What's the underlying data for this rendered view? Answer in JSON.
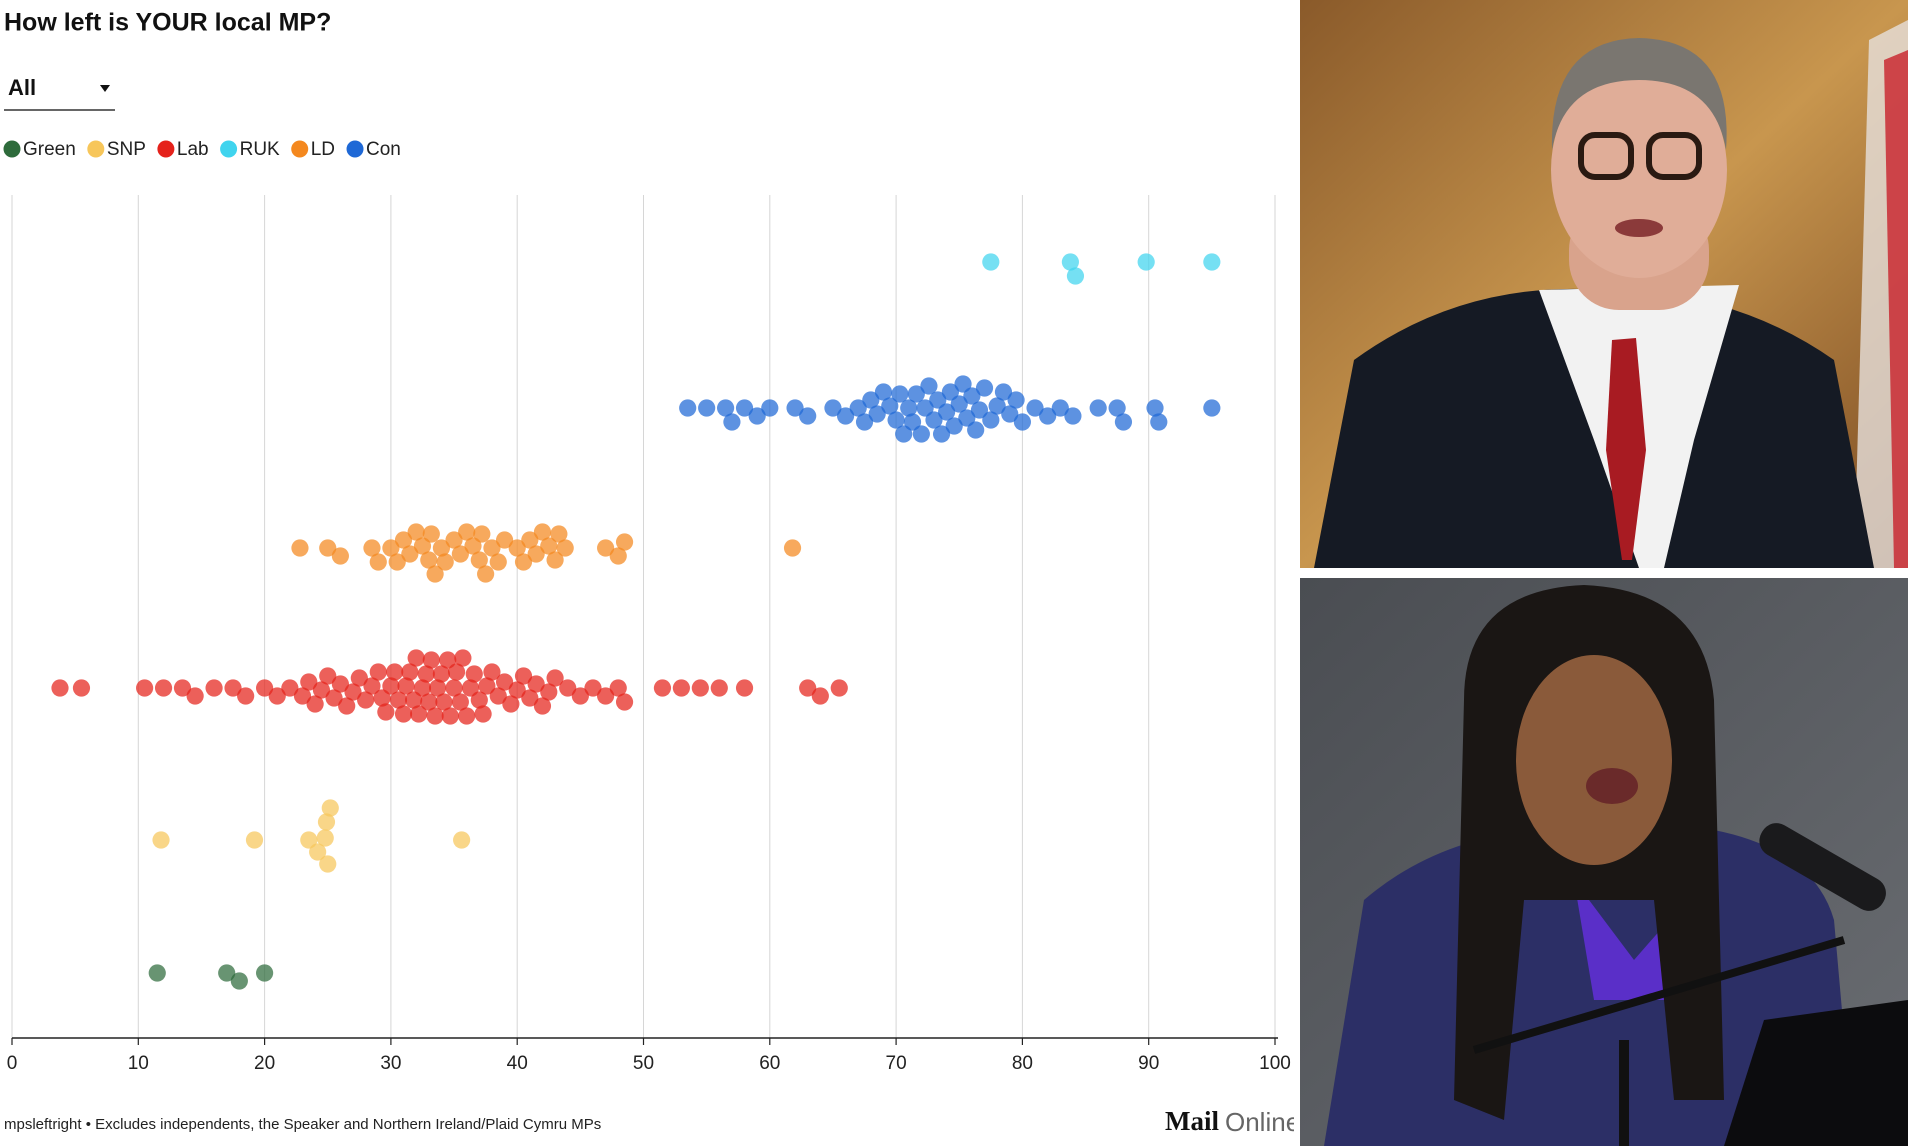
{
  "chart_data": {
    "type": "beeswarm",
    "title": "How left is YOUR local MP?",
    "dropdown": "All",
    "xlim": [
      0,
      100
    ],
    "xticks": [
      0,
      10,
      20,
      30,
      40,
      50,
      60,
      70,
      80,
      90,
      100
    ],
    "grid": true,
    "legend": "top-left",
    "series": [
      {
        "name": "Green",
        "color": "#2e6b3b",
        "values": [
          11.5,
          18,
          17,
          20
        ]
      },
      {
        "name": "SNP",
        "color": "#f7c65a",
        "values": [
          11.8,
          19.2,
          23.5,
          24.8,
          24.2,
          25,
          25.2,
          24.9,
          35.6
        ]
      },
      {
        "name": "Lab",
        "color": "#e5221b",
        "values": [
          3.8,
          5.5,
          10.5,
          12,
          13.5,
          14.5,
          16,
          17.5,
          18.5,
          20,
          21,
          22,
          23,
          23.5,
          24,
          24.5,
          25,
          25.5,
          26,
          26.5,
          27,
          27.5,
          28,
          28.5,
          29,
          29.3,
          29.6,
          30,
          30.3,
          30.6,
          31,
          31.2,
          31.5,
          31.8,
          32,
          32.2,
          32.5,
          32.8,
          33,
          33.2,
          33.5,
          33.7,
          34,
          34.2,
          34.5,
          34.7,
          35,
          35.2,
          35.5,
          35.7,
          36,
          36.3,
          36.6,
          37,
          37.3,
          37.6,
          38,
          38.5,
          39,
          39.5,
          40,
          40.5,
          41,
          41.5,
          42,
          42.5,
          43,
          44,
          45,
          46,
          47,
          48,
          48.5,
          51.5,
          53,
          54.5,
          56,
          58,
          63,
          64,
          65.5
        ]
      },
      {
        "name": "RUK",
        "color": "#40d4ee",
        "values": [
          77.5,
          84.2,
          83.8,
          89.8,
          95
        ]
      },
      {
        "name": "LD",
        "color": "#f4881e",
        "values": [
          22.8,
          25,
          26,
          28.5,
          29,
          30,
          30.5,
          31,
          31.5,
          32,
          32.5,
          33,
          33.2,
          33.5,
          34,
          34.3,
          35,
          35.5,
          36,
          36.5,
          37,
          37.2,
          37.5,
          38,
          38.5,
          39,
          40,
          40.5,
          41,
          41.5,
          42,
          42.5,
          43,
          43.3,
          43.8,
          47,
          48,
          48.5,
          61.8
        ]
      },
      {
        "name": "Con",
        "color": "#1e68d6",
        "values": [
          53.5,
          55,
          56.5,
          57,
          58,
          59,
          60,
          62,
          63,
          65,
          66,
          67,
          67.5,
          68,
          68.5,
          69,
          69.5,
          70,
          70.3,
          70.6,
          71,
          71.3,
          71.6,
          72,
          72.3,
          72.6,
          73,
          73.3,
          73.6,
          74,
          74.3,
          74.6,
          75,
          75.3,
          75.6,
          76,
          76.3,
          76.6,
          77,
          77.5,
          78,
          78.5,
          79,
          79.5,
          80,
          81,
          82,
          83,
          84,
          86,
          87.5,
          88,
          90.5,
          90.8,
          95
        ]
      }
    ],
    "footnote": "mpsleftright • Excludes independents, the Speaker and Northern Ireland/Plaid Cymru MPs",
    "brand": {
      "bold": "Mail",
      "light": "Online"
    }
  }
}
